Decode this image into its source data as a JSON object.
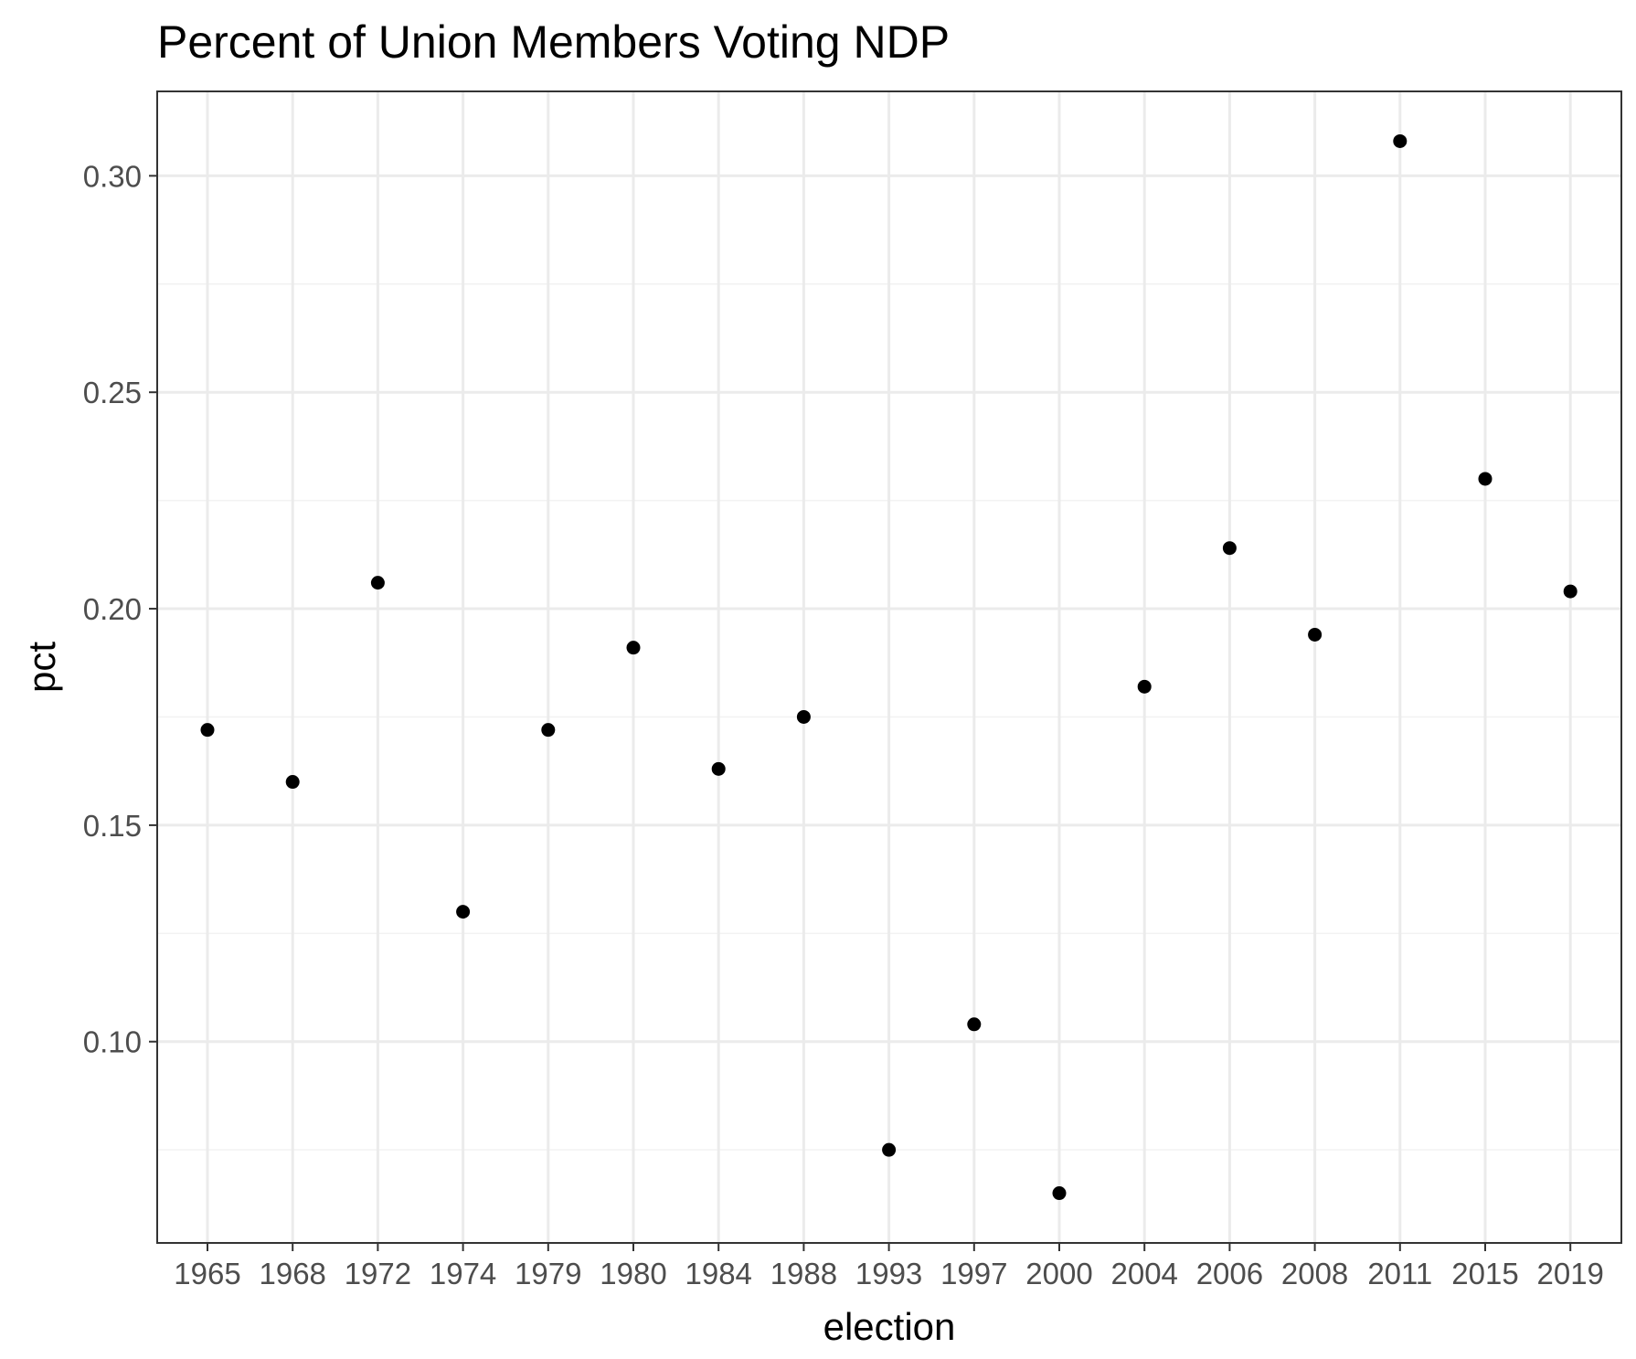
{
  "chart_data": {
    "type": "scatter",
    "title": "Percent of Union Members Voting NDP",
    "xlabel": "election",
    "ylabel": "pct",
    "categories": [
      "1965",
      "1968",
      "1972",
      "1974",
      "1979",
      "1980",
      "1984",
      "1988",
      "1993",
      "1997",
      "2000",
      "2004",
      "2006",
      "2008",
      "2011",
      "2015",
      "2019"
    ],
    "values": [
      0.172,
      0.16,
      0.206,
      0.13,
      0.172,
      0.191,
      0.163,
      0.175,
      0.075,
      0.104,
      0.065,
      0.182,
      0.214,
      0.194,
      0.308,
      0.23,
      0.204
    ],
    "ylim": [
      0.0535,
      0.3195
    ],
    "yticks": [
      0.1,
      0.15,
      0.2,
      0.25,
      0.3
    ],
    "ytick_labels": [
      "0.10",
      "0.15",
      "0.20",
      "0.25",
      "0.30"
    ],
    "grid": true,
    "legend": "none",
    "colors": {
      "point": "#000000",
      "grid_major": "#ebebeb",
      "grid_minor": "#f2f2f2",
      "panel_border": "#333333",
      "tick_text": "#4d4d4d"
    }
  }
}
